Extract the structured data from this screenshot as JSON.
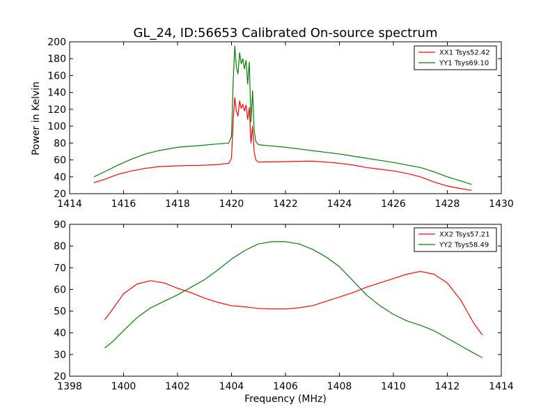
{
  "chart_data": [
    {
      "type": "line",
      "title": "GL_24, ID:56653 Calibrated On-source spectrum",
      "xlabel": "",
      "ylabel": "Power in Kelvin",
      "xlim": [
        1414,
        1430
      ],
      "ylim": [
        20,
        200
      ],
      "xticks": [
        1414,
        1416,
        1418,
        1420,
        1422,
        1424,
        1426,
        1428,
        1430
      ],
      "yticks": [
        20,
        40,
        60,
        80,
        100,
        120,
        140,
        160,
        180,
        200
      ],
      "legend_position": "top-right",
      "grid": false,
      "series": [
        {
          "name": "XX1 Tsys52.42",
          "color": "#ff0000",
          "points": [
            [
              1414.9,
              33
            ],
            [
              1415.3,
              37
            ],
            [
              1415.8,
              43
            ],
            [
              1416.3,
              47
            ],
            [
              1416.8,
              50
            ],
            [
              1417.3,
              52
            ],
            [
              1418.0,
              53
            ],
            [
              1418.8,
              53.5
            ],
            [
              1419.5,
              54.5
            ],
            [
              1419.9,
              56
            ],
            [
              1420.0,
              62
            ],
            [
              1420.06,
              105
            ],
            [
              1420.12,
              134
            ],
            [
              1420.18,
              118
            ],
            [
              1420.24,
              112
            ],
            [
              1420.3,
              130
            ],
            [
              1420.36,
              121
            ],
            [
              1420.42,
              126
            ],
            [
              1420.48,
              118
            ],
            [
              1420.54,
              125
            ],
            [
              1420.6,
              108
            ],
            [
              1420.66,
              122
            ],
            [
              1420.72,
              80
            ],
            [
              1420.78,
              100
            ],
            [
              1420.84,
              70
            ],
            [
              1420.9,
              60
            ],
            [
              1421.0,
              57.5
            ],
            [
              1421.5,
              57.8
            ],
            [
              1422.0,
              58
            ],
            [
              1422.5,
              58.3
            ],
            [
              1423.0,
              58.5
            ],
            [
              1423.5,
              57.5
            ],
            [
              1424.0,
              56
            ],
            [
              1424.5,
              54
            ],
            [
              1425.0,
              51
            ],
            [
              1425.5,
              49
            ],
            [
              1426.0,
              47
            ],
            [
              1426.5,
              44
            ],
            [
              1427.0,
              40
            ],
            [
              1427.5,
              34
            ],
            [
              1428.0,
              29
            ],
            [
              1428.5,
              26
            ],
            [
              1428.9,
              24
            ]
          ]
        },
        {
          "name": "YY1 Tsys69.10",
          "color": "#008000",
          "points": [
            [
              1414.9,
              40
            ],
            [
              1415.3,
              46
            ],
            [
              1415.8,
              54
            ],
            [
              1416.3,
              61
            ],
            [
              1416.8,
              67
            ],
            [
              1417.3,
              71
            ],
            [
              1418.0,
              75
            ],
            [
              1418.8,
              77
            ],
            [
              1419.5,
              79
            ],
            [
              1419.9,
              80
            ],
            [
              1420.0,
              88
            ],
            [
              1420.06,
              150
            ],
            [
              1420.12,
              195
            ],
            [
              1420.18,
              170
            ],
            [
              1420.24,
              162
            ],
            [
              1420.3,
              187
            ],
            [
              1420.36,
              174
            ],
            [
              1420.42,
              180
            ],
            [
              1420.48,
              168
            ],
            [
              1420.54,
              178
            ],
            [
              1420.6,
              150
            ],
            [
              1420.66,
              176
            ],
            [
              1420.72,
              105
            ],
            [
              1420.78,
              142
            ],
            [
              1420.84,
              95
            ],
            [
              1420.9,
              82
            ],
            [
              1421.0,
              78
            ],
            [
              1421.5,
              76.5
            ],
            [
              1422.0,
              75
            ],
            [
              1422.5,
              73
            ],
            [
              1423.0,
              71
            ],
            [
              1423.5,
              69
            ],
            [
              1424.0,
              67
            ],
            [
              1424.5,
              64.5
            ],
            [
              1425.0,
              62
            ],
            [
              1425.5,
              59.5
            ],
            [
              1426.0,
              57
            ],
            [
              1426.5,
              54
            ],
            [
              1427.0,
              51
            ],
            [
              1427.5,
              46
            ],
            [
              1428.0,
              40
            ],
            [
              1428.5,
              35
            ],
            [
              1428.9,
              31
            ]
          ]
        }
      ]
    },
    {
      "type": "line",
      "title": "",
      "xlabel": "Frequency (MHz)",
      "ylabel": "",
      "xlim": [
        1398,
        1414
      ],
      "ylim": [
        20,
        90
      ],
      "xticks": [
        1398,
        1400,
        1402,
        1404,
        1406,
        1408,
        1410,
        1412,
        1414
      ],
      "yticks": [
        20,
        30,
        40,
        50,
        60,
        70,
        80,
        90
      ],
      "legend_position": "top-right",
      "grid": false,
      "series": [
        {
          "name": "XX2 Tsys57.21",
          "color": "#ff0000",
          "points": [
            [
              1399.3,
              46
            ],
            [
              1399.6,
              51
            ],
            [
              1400.0,
              58
            ],
            [
              1400.5,
              62.5
            ],
            [
              1401.0,
              64
            ],
            [
              1401.5,
              63
            ],
            [
              1402.0,
              60.5
            ],
            [
              1402.5,
              58.5
            ],
            [
              1403.0,
              56
            ],
            [
              1403.5,
              54
            ],
            [
              1404.0,
              52.5
            ],
            [
              1404.5,
              52
            ],
            [
              1405.0,
              51.2
            ],
            [
              1405.5,
              51
            ],
            [
              1406.0,
              51
            ],
            [
              1406.5,
              51.5
            ],
            [
              1407.0,
              52.5
            ],
            [
              1407.5,
              54.5
            ],
            [
              1408.0,
              56.5
            ],
            [
              1408.5,
              58.5
            ],
            [
              1409.0,
              61
            ],
            [
              1409.5,
              63
            ],
            [
              1410.0,
              65
            ],
            [
              1410.5,
              67
            ],
            [
              1411.0,
              68.3
            ],
            [
              1411.5,
              67
            ],
            [
              1412.0,
              63
            ],
            [
              1412.5,
              55
            ],
            [
              1413.0,
              44
            ],
            [
              1413.3,
              39
            ]
          ]
        },
        {
          "name": "YY2 Tsys58.49",
          "color": "#008000",
          "points": [
            [
              1399.3,
              33
            ],
            [
              1399.6,
              36
            ],
            [
              1400.0,
              41
            ],
            [
              1400.5,
              47
            ],
            [
              1401.0,
              51.5
            ],
            [
              1401.5,
              54.5
            ],
            [
              1402.0,
              57.5
            ],
            [
              1402.5,
              61
            ],
            [
              1403.0,
              64.5
            ],
            [
              1403.5,
              69
            ],
            [
              1404.0,
              74
            ],
            [
              1404.5,
              78
            ],
            [
              1405.0,
              81
            ],
            [
              1405.5,
              82
            ],
            [
              1406.0,
              82
            ],
            [
              1406.5,
              81
            ],
            [
              1407.0,
              78.5
            ],
            [
              1407.5,
              75
            ],
            [
              1408.0,
              70.5
            ],
            [
              1408.5,
              64
            ],
            [
              1409.0,
              57.5
            ],
            [
              1409.5,
              52.5
            ],
            [
              1410.0,
              48.5
            ],
            [
              1410.5,
              45.5
            ],
            [
              1411.0,
              43.5
            ],
            [
              1411.5,
              41
            ],
            [
              1412.0,
              37.5
            ],
            [
              1412.5,
              34
            ],
            [
              1413.0,
              30.5
            ],
            [
              1413.3,
              28.5
            ]
          ]
        }
      ]
    }
  ]
}
